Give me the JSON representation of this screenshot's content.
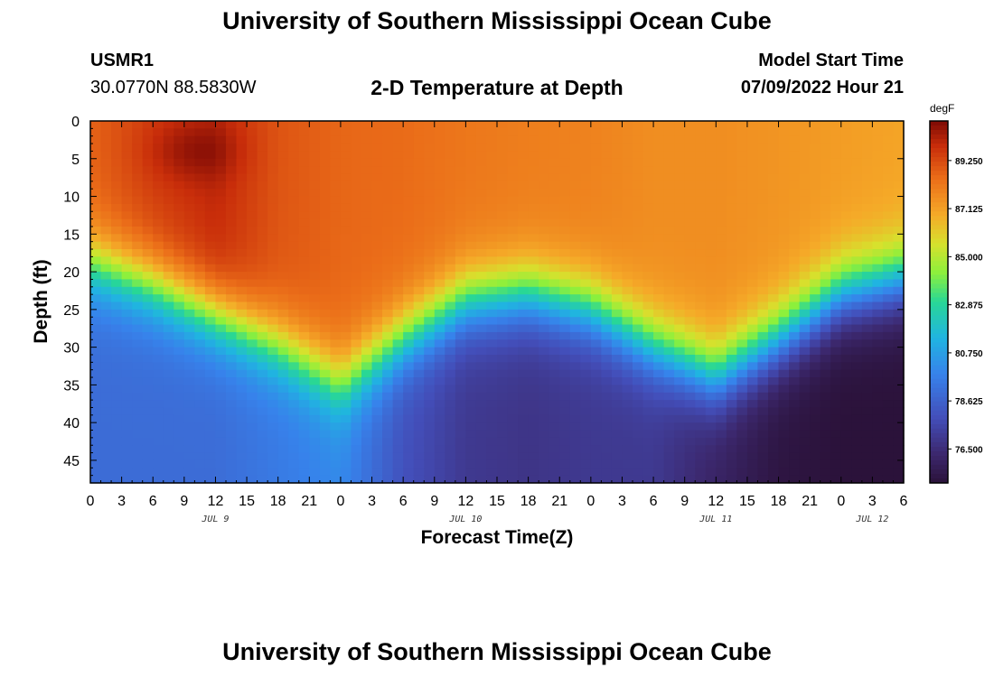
{
  "header": {
    "main_title": "University of Southern Mississippi Ocean Cube",
    "station_id": "USMR1",
    "station_coords": "30.0770N  88.5830W",
    "plot_title": "2-D Temperature at Depth",
    "model_start_label": "Model Start Time",
    "model_start_value": "07/09/2022 Hour 21"
  },
  "footer": {
    "bottom_title": "University of Southern Mississippi Ocean Cube"
  },
  "chart_data": {
    "type": "heatmap",
    "title": "2-D Temperature at Depth",
    "xlabel": "Forecast Time(Z)",
    "ylabel": "Depth (ft)",
    "x_range_hours": [
      0,
      78
    ],
    "x_start": "07/09/2022 00Z",
    "x_tick_labels": [
      "0",
      "3",
      "6",
      "9",
      "12",
      "15",
      "18",
      "21",
      "0",
      "3",
      "6",
      "9",
      "12",
      "15",
      "18",
      "21",
      "0",
      "3",
      "6",
      "9",
      "12",
      "15",
      "18",
      "21",
      "0",
      "3",
      "6"
    ],
    "date_labels": [
      {
        "label": "JUL 9",
        "hour": 12
      },
      {
        "label": "JUL 10",
        "hour": 36
      },
      {
        "label": "JUL 11",
        "hour": 60
      },
      {
        "label": "JUL 12",
        "hour": 75
      }
    ],
    "ylim": [
      48,
      0
    ],
    "y_tick_labels": [
      "0",
      "5",
      "10",
      "15",
      "20",
      "25",
      "30",
      "35",
      "40",
      "45"
    ],
    "y_tick_values": [
      0,
      5,
      10,
      15,
      20,
      25,
      30,
      35,
      40,
      45
    ],
    "colorbar": {
      "unit": "degF",
      "range": [
        75.0,
        91.0
      ],
      "tick_values": [
        89.25,
        87.125,
        85.0,
        82.875,
        80.75,
        78.625,
        76.5
      ],
      "tick_labels": [
        "89.250",
        "87.125",
        "85.000",
        "82.875",
        "80.750",
        "78.625",
        "76.500"
      ]
    },
    "thermocline_depth_ft": {
      "hours": [
        0,
        6,
        12,
        18,
        24,
        30,
        36,
        42,
        48,
        54,
        60,
        66,
        72,
        78
      ],
      "values": [
        19,
        22,
        26,
        30,
        35,
        29,
        24,
        23,
        25,
        30,
        34,
        29,
        23,
        21
      ]
    },
    "surface_temp_degF": {
      "hours": [
        0,
        6,
        12,
        18,
        24,
        30,
        36,
        42,
        48,
        54,
        60,
        66,
        72,
        78
      ],
      "values": [
        88.7,
        89.5,
        90.0,
        89.0,
        88.6,
        88.5,
        88.2,
        88.0,
        87.9,
        87.6,
        87.6,
        87.4,
        87.2,
        87.0
      ]
    },
    "bottom_temp_degF": {
      "hours": [
        0,
        6,
        12,
        18,
        24,
        30,
        36,
        42,
        48,
        54,
        60,
        66,
        72,
        78
      ],
      "values": [
        79.0,
        79.0,
        79.0,
        79.5,
        80.0,
        78.0,
        77.0,
        76.8,
        77.0,
        77.0,
        76.0,
        75.2,
        75.0,
        75.0
      ]
    }
  }
}
